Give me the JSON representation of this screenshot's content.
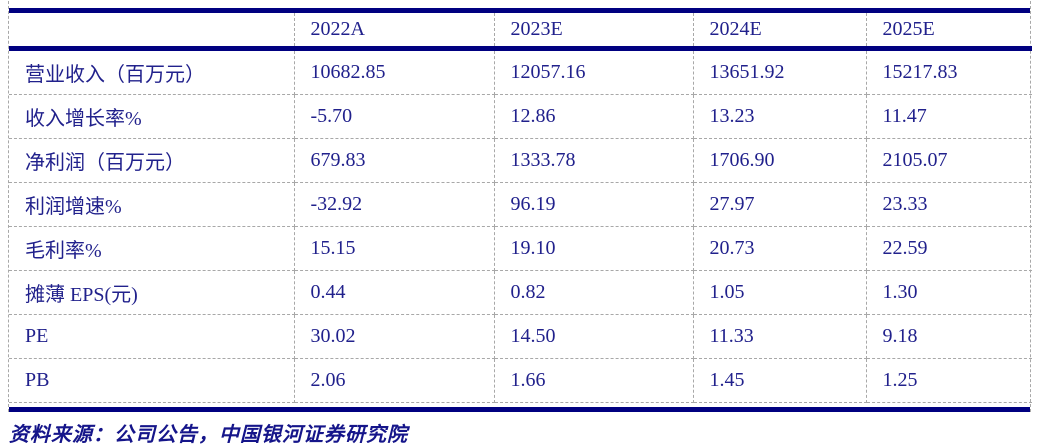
{
  "table": {
    "header": [
      "",
      "2022A",
      "2023E",
      "2024E",
      "2025E"
    ],
    "rows": [
      {
        "label": "营业收入（百万元）",
        "values": [
          "10682.85",
          "12057.16",
          "13651.92",
          "15217.83"
        ]
      },
      {
        "label": "收入增长率%",
        "values": [
          "-5.70",
          "12.86",
          "13.23",
          "11.47"
        ]
      },
      {
        "label": "净利润（百万元）",
        "values": [
          "679.83",
          "1333.78",
          "1706.90",
          "2105.07"
        ]
      },
      {
        "label": "利润增速%",
        "values": [
          "-32.92",
          "96.19",
          "27.97",
          "23.33"
        ]
      },
      {
        "label": "毛利率%",
        "values": [
          "15.15",
          "19.10",
          "20.73",
          "22.59"
        ]
      },
      {
        "label": "摊薄 EPS(元)",
        "values": [
          "0.44",
          "0.82",
          "1.05",
          "1.30"
        ]
      },
      {
        "label": "PE",
        "values": [
          "30.02",
          "14.50",
          "11.33",
          "9.18"
        ]
      },
      {
        "label": "PB",
        "values": [
          "2.06",
          "1.66",
          "1.45",
          "1.25"
        ]
      }
    ]
  },
  "source_note": "资料来源：公司公告，中国银河证券研究院",
  "colors": {
    "rule": "#000080",
    "text": "#21218c",
    "grid": "#a8a8a8",
    "background": "#ffffff"
  }
}
